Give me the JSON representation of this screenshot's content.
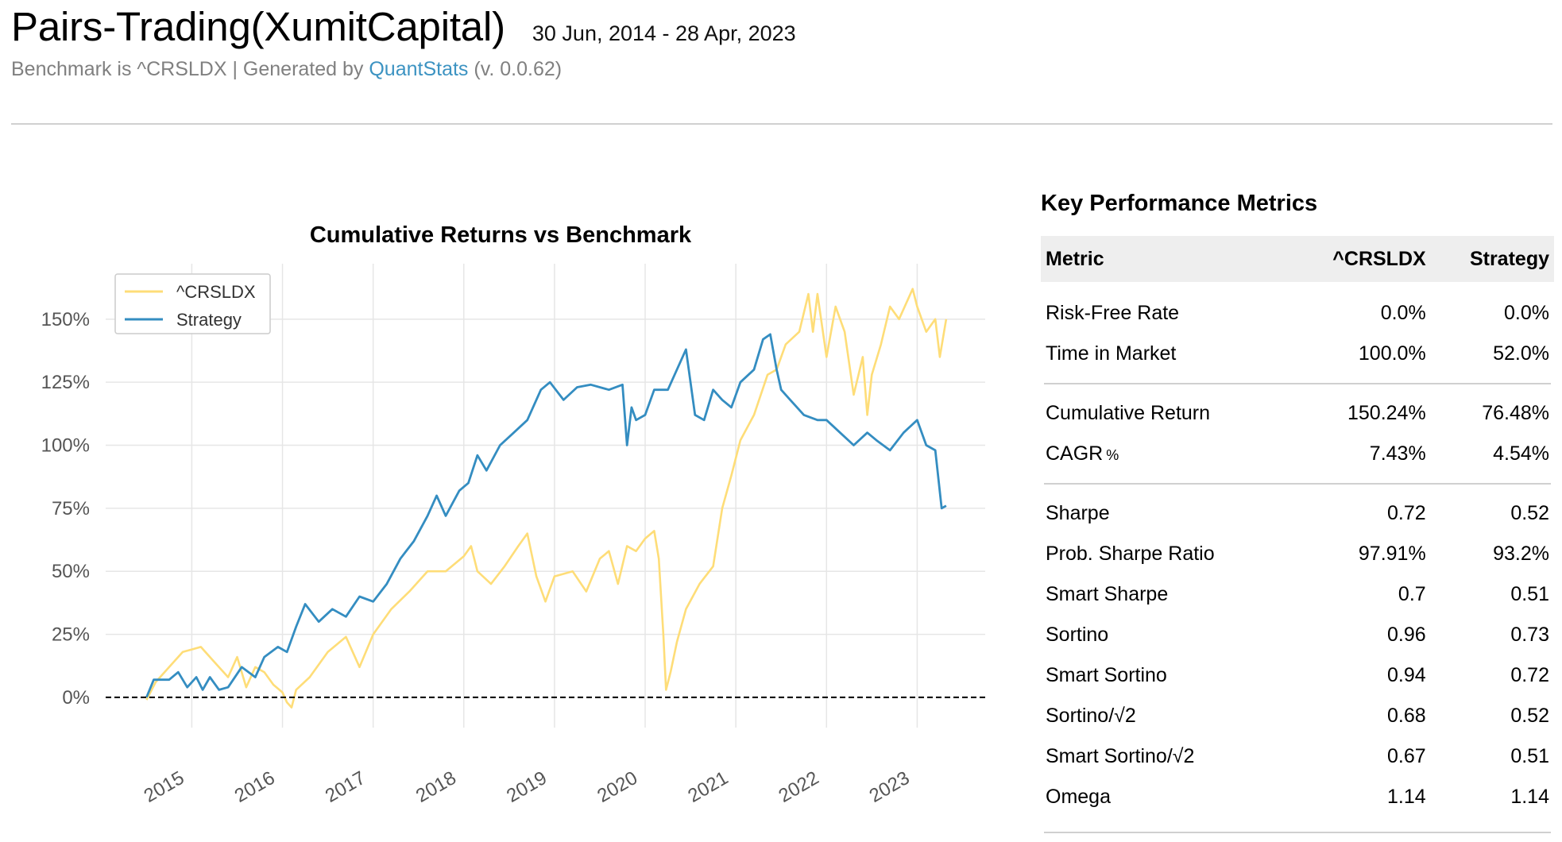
{
  "header": {
    "title": "Pairs-Trading(XumitCapital)",
    "date_range": "30 Jun, 2014 - 28 Apr, 2023",
    "benchmark_text": "Benchmark is ^CRSLDX | Generated by ",
    "generator_link": "QuantStats",
    "version_text": " (v. 0.0.62)"
  },
  "metrics": {
    "heading": "Key Performance Metrics",
    "columns": [
      "Metric",
      "^CRSLDX",
      "Strategy"
    ],
    "rows": [
      {
        "metric": "Risk-Free Rate",
        "benchmark": "0.0%",
        "strategy": "0.0%"
      },
      {
        "metric": "Time in Market",
        "benchmark": "100.0%",
        "strategy": "52.0%"
      },
      {
        "metric": "Cumulative Return",
        "benchmark": "150.24%",
        "strategy": "76.48%"
      },
      {
        "metric": "CAGR",
        "suffix": "%",
        "benchmark": "7.43%",
        "strategy": "4.54%"
      },
      {
        "metric": "Sharpe",
        "benchmark": "0.72",
        "strategy": "0.52"
      },
      {
        "metric": "Prob. Sharpe Ratio",
        "benchmark": "97.91%",
        "strategy": "93.2%"
      },
      {
        "metric": "Smart Sharpe",
        "benchmark": "0.7",
        "strategy": "0.51"
      },
      {
        "metric": "Sortino",
        "benchmark": "0.96",
        "strategy": "0.73"
      },
      {
        "metric": "Smart Sortino",
        "benchmark": "0.94",
        "strategy": "0.72"
      },
      {
        "metric": "Sortino/√2",
        "benchmark": "0.68",
        "strategy": "0.52"
      },
      {
        "metric": "Smart Sortino/√2",
        "benchmark": "0.67",
        "strategy": "0.51"
      },
      {
        "metric": "Omega",
        "benchmark": "1.14",
        "strategy": "1.14"
      }
    ]
  },
  "chart_data": {
    "type": "line",
    "title": "Cumulative Returns vs Benchmark",
    "xlabel": "",
    "ylabel": "",
    "ylim": [
      -0.12,
      1.72
    ],
    "xlim": [
      2014.05,
      2023.75
    ],
    "x_ticks": [
      2015,
      2016,
      2017,
      2018,
      2019,
      2020,
      2021,
      2022,
      2023
    ],
    "x_tick_labels": [
      "2015",
      "2016",
      "2017",
      "2018",
      "2019",
      "2020",
      "2021",
      "2022",
      "2023"
    ],
    "y_ticks": [
      0,
      0.25,
      0.5,
      0.75,
      1.0,
      1.25,
      1.5
    ],
    "y_tick_labels": [
      "0%",
      "25%",
      "50%",
      "75%",
      "100%",
      "125%",
      "150%"
    ],
    "grid": true,
    "legend_position": "top-left",
    "baseline": 0,
    "series": [
      {
        "name": "^CRSLDX",
        "color": "#fedd78",
        "x": [
          2014.5,
          2014.6,
          2014.75,
          2014.9,
          2015.0,
          2015.1,
          2015.25,
          2015.4,
          2015.5,
          2015.6,
          2015.7,
          2015.8,
          2015.9,
          2016.0,
          2016.05,
          2016.1,
          2016.15,
          2016.3,
          2016.5,
          2016.7,
          2016.85,
          2017.0,
          2017.2,
          2017.4,
          2017.6,
          2017.8,
          2018.0,
          2018.08,
          2018.15,
          2018.3,
          2018.45,
          2018.6,
          2018.7,
          2018.8,
          2018.9,
          2019.0,
          2019.2,
          2019.35,
          2019.5,
          2019.6,
          2019.7,
          2019.8,
          2019.9,
          2020.0,
          2020.1,
          2020.15,
          2020.2,
          2020.23,
          2020.28,
          2020.35,
          2020.45,
          2020.6,
          2020.75,
          2020.85,
          2020.95,
          2021.05,
          2021.2,
          2021.35,
          2021.45,
          2021.55,
          2021.7,
          2021.8,
          2021.85,
          2021.9,
          2022.0,
          2022.1,
          2022.2,
          2022.3,
          2022.4,
          2022.45,
          2022.5,
          2022.6,
          2022.7,
          2022.8,
          2022.95,
          2023.0,
          2023.1,
          2023.2,
          2023.25,
          2023.32
        ],
        "y": [
          -0.01,
          0.06,
          0.12,
          0.18,
          0.19,
          0.2,
          0.14,
          0.08,
          0.16,
          0.04,
          0.12,
          0.1,
          0.05,
          0.02,
          -0.02,
          -0.04,
          0.03,
          0.08,
          0.18,
          0.24,
          0.12,
          0.25,
          0.35,
          0.42,
          0.5,
          0.5,
          0.56,
          0.6,
          0.5,
          0.45,
          0.52,
          0.6,
          0.65,
          0.48,
          0.38,
          0.48,
          0.5,
          0.42,
          0.55,
          0.58,
          0.45,
          0.6,
          0.58,
          0.63,
          0.66,
          0.55,
          0.25,
          0.03,
          0.1,
          0.22,
          0.35,
          0.45,
          0.52,
          0.75,
          0.88,
          1.02,
          1.12,
          1.28,
          1.3,
          1.4,
          1.45,
          1.6,
          1.45,
          1.6,
          1.35,
          1.55,
          1.45,
          1.2,
          1.35,
          1.12,
          1.28,
          1.4,
          1.55,
          1.5,
          1.62,
          1.55,
          1.45,
          1.5,
          1.35,
          1.5
        ]
      },
      {
        "name": "Strategy",
        "color": "#348dc1",
        "x": [
          2014.5,
          2014.58,
          2014.75,
          2014.85,
          2014.95,
          2015.05,
          2015.12,
          2015.2,
          2015.3,
          2015.4,
          2015.55,
          2015.7,
          2015.8,
          2015.95,
          2016.05,
          2016.15,
          2016.25,
          2016.4,
          2016.55,
          2016.7,
          2016.85,
          2017.0,
          2017.15,
          2017.3,
          2017.45,
          2017.6,
          2017.7,
          2017.8,
          2017.95,
          2018.05,
          2018.15,
          2018.25,
          2018.4,
          2018.55,
          2018.7,
          2018.85,
          2018.95,
          2019.1,
          2019.25,
          2019.4,
          2019.6,
          2019.75,
          2019.8,
          2019.85,
          2019.9,
          2020.0,
          2020.1,
          2020.25,
          2020.35,
          2020.45,
          2020.55,
          2020.65,
          2020.75,
          2020.85,
          2020.95,
          2021.05,
          2021.2,
          2021.3,
          2021.38,
          2021.45,
          2021.5,
          2021.6,
          2021.75,
          2021.9,
          2022.0,
          2022.15,
          2022.3,
          2022.45,
          2022.55,
          2022.7,
          2022.85,
          2023.0,
          2023.1,
          2023.2,
          2023.27,
          2023.32
        ],
        "y": [
          0.0,
          0.07,
          0.07,
          0.1,
          0.04,
          0.08,
          0.03,
          0.08,
          0.03,
          0.04,
          0.12,
          0.08,
          0.16,
          0.2,
          0.18,
          0.28,
          0.37,
          0.3,
          0.35,
          0.32,
          0.4,
          0.38,
          0.45,
          0.55,
          0.62,
          0.72,
          0.8,
          0.72,
          0.82,
          0.85,
          0.96,
          0.9,
          1.0,
          1.05,
          1.1,
          1.22,
          1.25,
          1.18,
          1.23,
          1.24,
          1.22,
          1.24,
          1.0,
          1.15,
          1.1,
          1.12,
          1.22,
          1.22,
          1.3,
          1.38,
          1.12,
          1.1,
          1.22,
          1.18,
          1.15,
          1.25,
          1.3,
          1.42,
          1.44,
          1.3,
          1.22,
          1.18,
          1.12,
          1.1,
          1.1,
          1.05,
          1.0,
          1.05,
          1.02,
          0.98,
          1.05,
          1.1,
          1.0,
          0.98,
          0.75,
          0.76
        ]
      }
    ]
  }
}
